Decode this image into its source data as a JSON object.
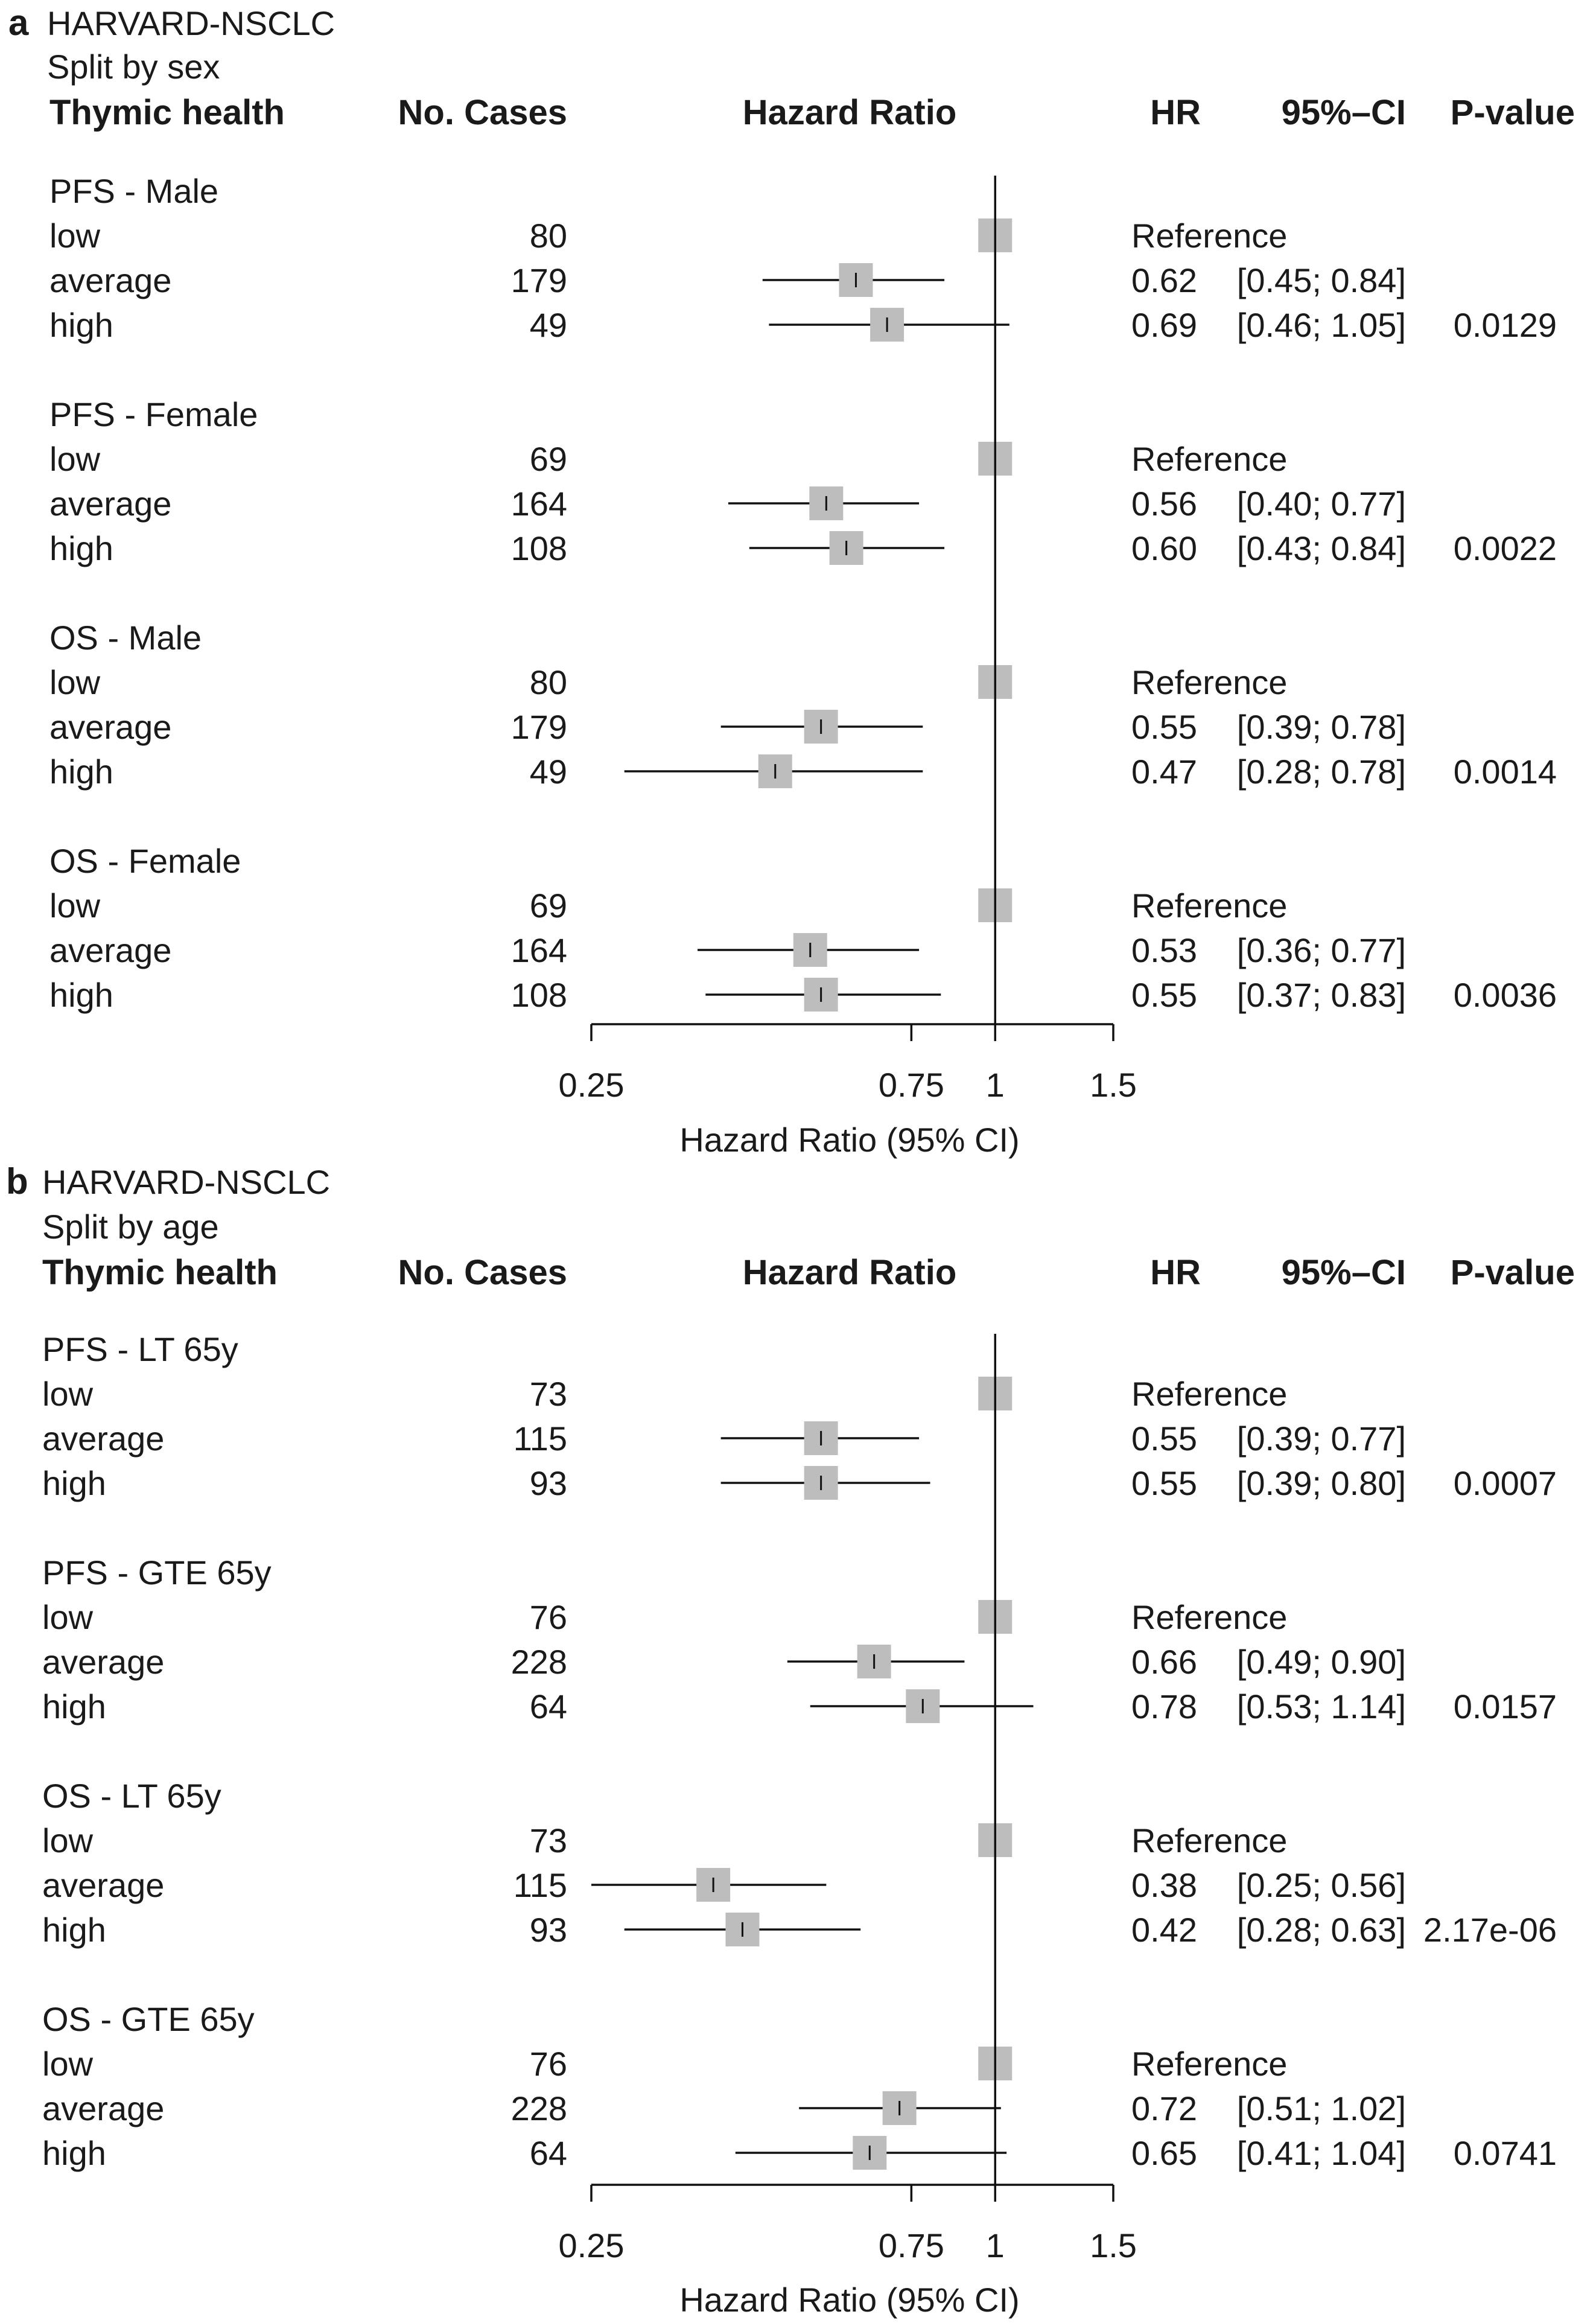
{
  "panel_a": {
    "letter": "a",
    "dataset": "HARVARD-NSCLC",
    "split": "Split by sex",
    "headers": {
      "group": "Thymic health",
      "cases": "No. Cases",
      "plot": "Hazard Ratio",
      "hr": "HR",
      "ci": "95%–CI",
      "p": "P-value"
    },
    "axis_label": "Hazard Ratio (95% CI)"
  },
  "panel_b": {
    "letter": "b",
    "dataset": "HARVARD-NSCLC",
    "split": "Split by age",
    "headers": {
      "group": "Thymic health",
      "cases": "No. Cases",
      "plot": "Hazard Ratio",
      "hr": "HR",
      "ci": "95%–CI",
      "p": "P-value"
    },
    "axis_label": "Hazard Ratio (95% CI)"
  },
  "chart_data": [
    {
      "type": "forest",
      "panel": "a",
      "title": "HARVARD-NSCLC — Split by sex",
      "xlabel": "Hazard Ratio (95% CI)",
      "xscale": "log",
      "xlim": [
        0.25,
        1.5
      ],
      "xticks": [
        0.25,
        0.75,
        1,
        1.5
      ],
      "xtick_labels": [
        "0.25",
        "0.75",
        "1",
        "1.5"
      ],
      "reference_line": 1,
      "groups": [
        {
          "label": "PFS - Male",
          "p_value": "0.0129",
          "rows": [
            {
              "level": "low",
              "cases": 80,
              "hr": 1,
              "lo": 1,
              "hi": 1,
              "hr_text": "Reference",
              "ci_text": ""
            },
            {
              "level": "average",
              "cases": 179,
              "hr": 0.62,
              "lo": 0.45,
              "hi": 0.84,
              "hr_text": "0.62",
              "ci_text": "[0.45; 0.84]"
            },
            {
              "level": "high",
              "cases": 49,
              "hr": 0.69,
              "lo": 0.46,
              "hi": 1.05,
              "hr_text": "0.69",
              "ci_text": "[0.46; 1.05]"
            }
          ]
        },
        {
          "label": "PFS - Female",
          "p_value": "0.0022",
          "rows": [
            {
              "level": "low",
              "cases": 69,
              "hr": 1,
              "lo": 1,
              "hi": 1,
              "hr_text": "Reference",
              "ci_text": ""
            },
            {
              "level": "average",
              "cases": 164,
              "hr": 0.56,
              "lo": 0.4,
              "hi": 0.77,
              "hr_text": "0.56",
              "ci_text": "[0.40; 0.77]"
            },
            {
              "level": "high",
              "cases": 108,
              "hr": 0.6,
              "lo": 0.43,
              "hi": 0.84,
              "hr_text": "0.60",
              "ci_text": "[0.43; 0.84]"
            }
          ]
        },
        {
          "label": "OS - Male",
          "p_value": "0.0014",
          "rows": [
            {
              "level": "low",
              "cases": 80,
              "hr": 1,
              "lo": 1,
              "hi": 1,
              "hr_text": "Reference",
              "ci_text": ""
            },
            {
              "level": "average",
              "cases": 179,
              "hr": 0.55,
              "lo": 0.39,
              "hi": 0.78,
              "hr_text": "0.55",
              "ci_text": "[0.39; 0.78]"
            },
            {
              "level": "high",
              "cases": 49,
              "hr": 0.47,
              "lo": 0.28,
              "hi": 0.78,
              "hr_text": "0.47",
              "ci_text": "[0.28; 0.78]"
            }
          ]
        },
        {
          "label": "OS - Female",
          "p_value": "0.0036",
          "rows": [
            {
              "level": "low",
              "cases": 69,
              "hr": 1,
              "lo": 1,
              "hi": 1,
              "hr_text": "Reference",
              "ci_text": ""
            },
            {
              "level": "average",
              "cases": 164,
              "hr": 0.53,
              "lo": 0.36,
              "hi": 0.77,
              "hr_text": "0.53",
              "ci_text": "[0.36; 0.77]"
            },
            {
              "level": "high",
              "cases": 108,
              "hr": 0.55,
              "lo": 0.37,
              "hi": 0.83,
              "hr_text": "0.55",
              "ci_text": "[0.37; 0.83]"
            }
          ]
        }
      ]
    },
    {
      "type": "forest",
      "panel": "b",
      "title": "HARVARD-NSCLC — Split by age",
      "xlabel": "Hazard Ratio (95% CI)",
      "xscale": "log",
      "xlim": [
        0.25,
        1.5
      ],
      "xticks": [
        0.25,
        0.75,
        1,
        1.5
      ],
      "xtick_labels": [
        "0.25",
        "0.75",
        "1",
        "1.5"
      ],
      "reference_line": 1,
      "groups": [
        {
          "label": "PFS - LT 65y",
          "p_value": "0.0007",
          "rows": [
            {
              "level": "low",
              "cases": 73,
              "hr": 1,
              "lo": 1,
              "hi": 1,
              "hr_text": "Reference",
              "ci_text": ""
            },
            {
              "level": "average",
              "cases": 115,
              "hr": 0.55,
              "lo": 0.39,
              "hi": 0.77,
              "hr_text": "0.55",
              "ci_text": "[0.39; 0.77]"
            },
            {
              "level": "high",
              "cases": 93,
              "hr": 0.55,
              "lo": 0.39,
              "hi": 0.8,
              "hr_text": "0.55",
              "ci_text": "[0.39; 0.80]"
            }
          ]
        },
        {
          "label": "PFS - GTE 65y",
          "p_value": "0.0157",
          "rows": [
            {
              "level": "low",
              "cases": 76,
              "hr": 1,
              "lo": 1,
              "hi": 1,
              "hr_text": "Reference",
              "ci_text": ""
            },
            {
              "level": "average",
              "cases": 228,
              "hr": 0.66,
              "lo": 0.49,
              "hi": 0.9,
              "hr_text": "0.66",
              "ci_text": "[0.49; 0.90]"
            },
            {
              "level": "high",
              "cases": 64,
              "hr": 0.78,
              "lo": 0.53,
              "hi": 1.14,
              "hr_text": "0.78",
              "ci_text": "[0.53; 1.14]"
            }
          ]
        },
        {
          "label": "OS - LT 65y",
          "p_value": "2.17e-06",
          "rows": [
            {
              "level": "low",
              "cases": 73,
              "hr": 1,
              "lo": 1,
              "hi": 1,
              "hr_text": "Reference",
              "ci_text": ""
            },
            {
              "level": "average",
              "cases": 115,
              "hr": 0.38,
              "lo": 0.25,
              "hi": 0.56,
              "hr_text": "0.38",
              "ci_text": "[0.25; 0.56]"
            },
            {
              "level": "high",
              "cases": 93,
              "hr": 0.42,
              "lo": 0.28,
              "hi": 0.63,
              "hr_text": "0.42",
              "ci_text": "[0.28; 0.63]"
            }
          ]
        },
        {
          "label": "OS - GTE 65y",
          "p_value": "0.0741",
          "rows": [
            {
              "level": "low",
              "cases": 76,
              "hr": 1,
              "lo": 1,
              "hi": 1,
              "hr_text": "Reference",
              "ci_text": ""
            },
            {
              "level": "average",
              "cases": 228,
              "hr": 0.72,
              "lo": 0.51,
              "hi": 1.02,
              "hr_text": "0.72",
              "ci_text": "[0.51; 1.02]"
            },
            {
              "level": "high",
              "cases": 64,
              "hr": 0.65,
              "lo": 0.41,
              "hi": 1.04,
              "hr_text": "0.65",
              "ci_text": "[0.41; 1.04]"
            }
          ]
        }
      ]
    }
  ]
}
